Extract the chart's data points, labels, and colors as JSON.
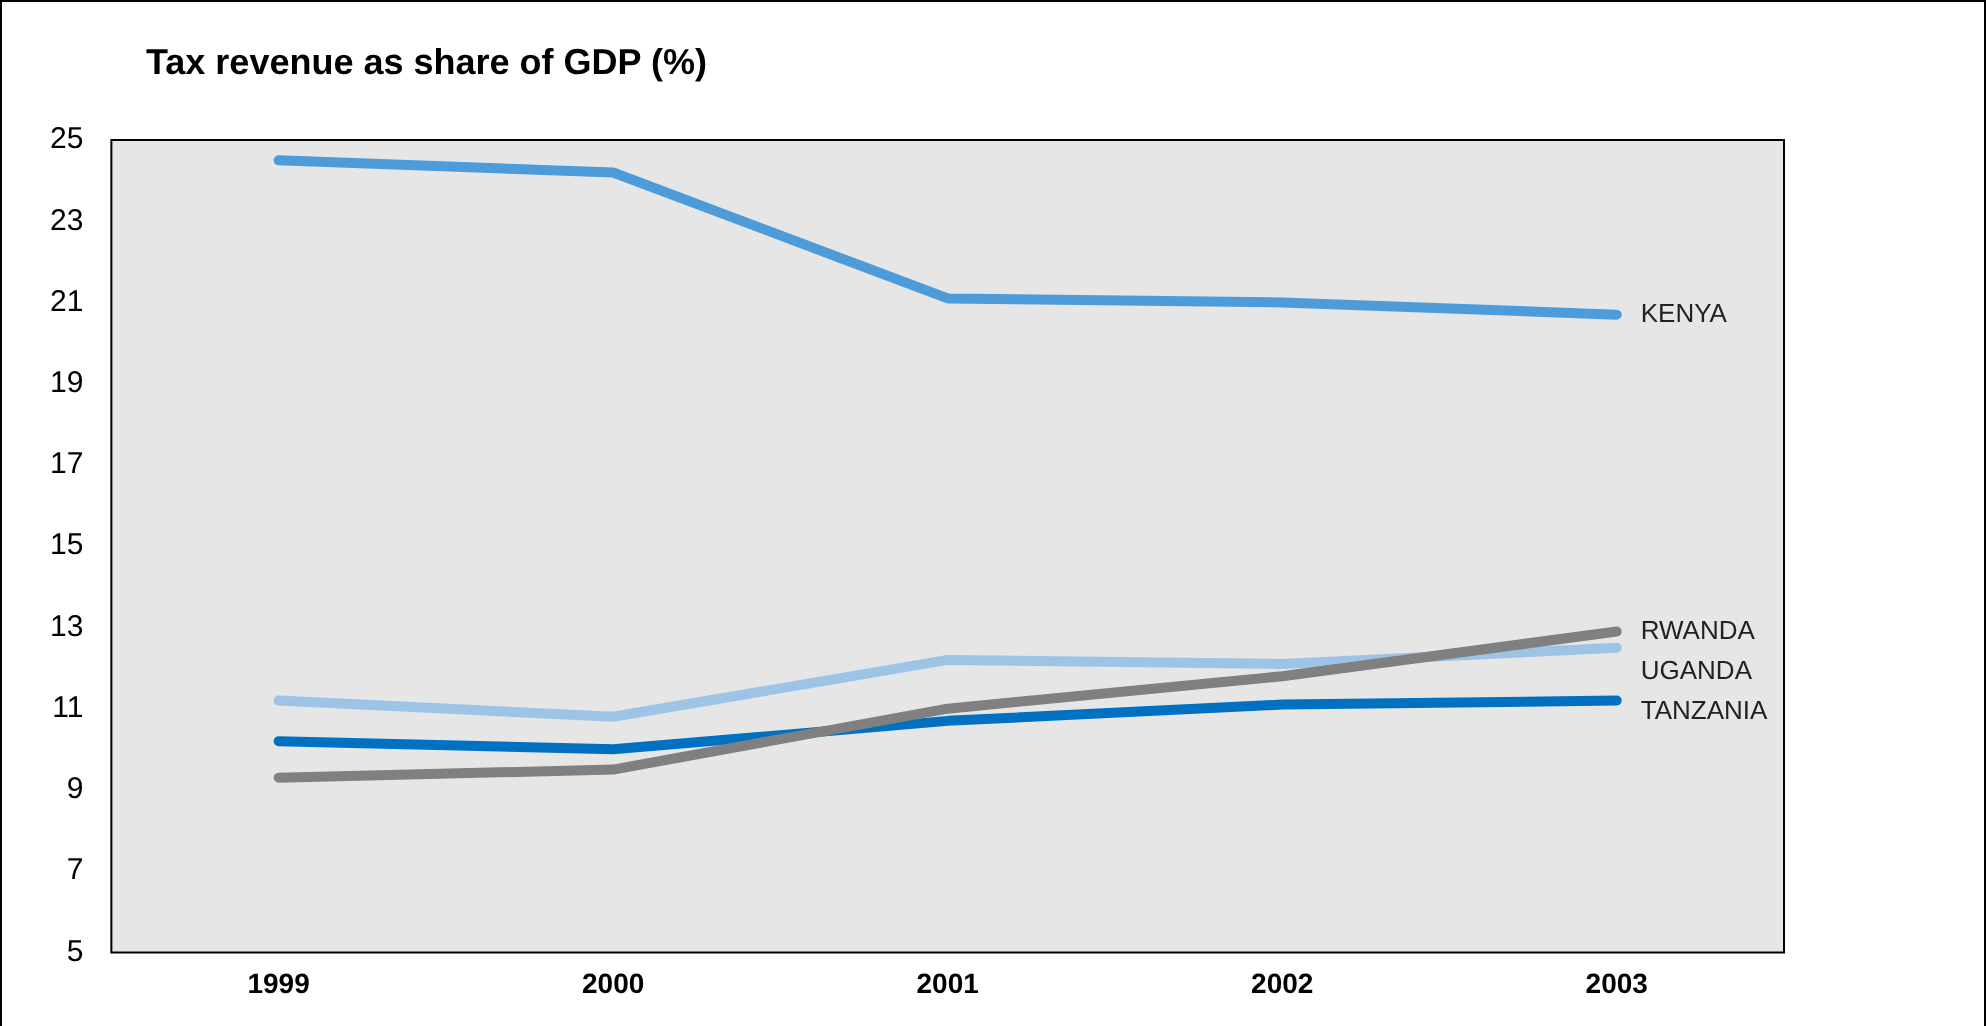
{
  "chart_data": {
    "type": "line",
    "title": "Tax revenue as share of GDP (%)",
    "categories": [
      "1999",
      "2000",
      "2001",
      "2002",
      "2003"
    ],
    "series": [
      {
        "name": "KENYA",
        "color": "#4d9bd8",
        "values": [
          24.5,
          24.2,
          21.1,
          21.0,
          20.7
        ]
      },
      {
        "name": "RWANDA",
        "color": "#808080",
        "values": [
          9.3,
          9.5,
          11.0,
          11.8,
          12.9
        ]
      },
      {
        "name": "UGANDA",
        "color": "#9dc3e6",
        "values": [
          11.2,
          10.8,
          12.2,
          12.1,
          12.5
        ]
      },
      {
        "name": "TANZANIA",
        "color": "#0070c0",
        "values": [
          10.2,
          10.0,
          10.7,
          11.1,
          11.2
        ]
      }
    ],
    "ylim": [
      5,
      25
    ],
    "yticks": [
      5,
      7,
      9,
      11,
      13,
      15,
      17,
      19,
      21,
      23,
      25
    ],
    "grid": false,
    "legend": false,
    "marker": "none",
    "line_style": "solid"
  }
}
